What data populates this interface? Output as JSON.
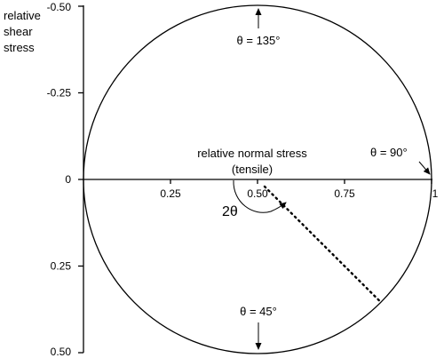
{
  "diagram": {
    "y_axis_label": [
      "relative",
      "shear",
      "stress"
    ],
    "y_ticks": [
      {
        "value": -0.5,
        "label": "-0.50"
      },
      {
        "value": -0.25,
        "label": "-0.25"
      },
      {
        "value": 0,
        "label": "0"
      },
      {
        "value": 0.25,
        "label": "0.25"
      },
      {
        "value": 0.5,
        "label": "0.50"
      }
    ],
    "x_ticks": [
      {
        "value": 0.25,
        "label": "0.25"
      },
      {
        "value": 0.5,
        "label": "0.50"
      },
      {
        "value": 0.75,
        "label": "0.75"
      },
      {
        "value": 1,
        "label": "1"
      }
    ],
    "x_axis_label": [
      "relative normal stress",
      "(tensile)"
    ],
    "angle_labels": {
      "theta_135": "θ = 135°",
      "theta_90": "θ = 90°",
      "theta_45": "θ = 45°",
      "two_theta": "2θ"
    },
    "mohr_circle": {
      "center": 0.5,
      "radius": 0.5
    },
    "sample_state": {
      "normal": 0.85,
      "shear": 0.35
    }
  }
}
